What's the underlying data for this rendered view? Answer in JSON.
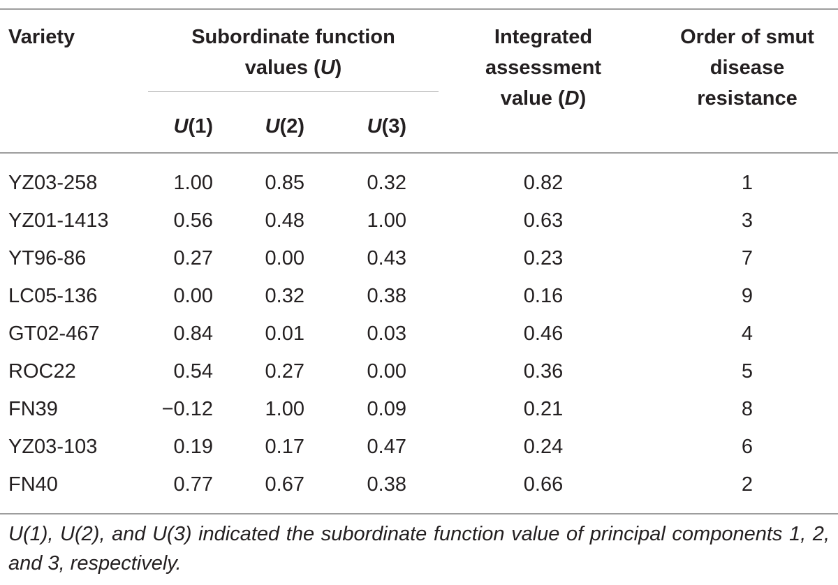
{
  "table": {
    "header": {
      "variety": "Variety",
      "subordinate_line1": "Subordinate function",
      "subordinate_line2_prefix": "values (",
      "subordinate_symbol": "U",
      "subordinate_line2_suffix": ")",
      "integrated_line1": "Integrated",
      "integrated_line2": "assessment",
      "integrated_line3_prefix": "value (",
      "integrated_symbol": "D",
      "integrated_line3_suffix": ")",
      "order_line1": "Order of smut",
      "order_line2": "disease",
      "order_line3": "resistance",
      "u_symbol": "U",
      "u1_index": "(1)",
      "u2_index": "(2)",
      "u3_index": "(3)"
    },
    "rows": [
      {
        "variety": "YZ03-258",
        "u1": "1.00",
        "u2": "0.85",
        "u3": "0.32",
        "d": "0.82",
        "order": "1"
      },
      {
        "variety": "YZ01-1413",
        "u1": "0.56",
        "u2": "0.48",
        "u3": "1.00",
        "d": "0.63",
        "order": "3"
      },
      {
        "variety": "YT96-86",
        "u1": "0.27",
        "u2": "0.00",
        "u3": "0.43",
        "d": "0.23",
        "order": "7"
      },
      {
        "variety": "LC05-136",
        "u1": "0.00",
        "u2": "0.32",
        "u3": "0.38",
        "d": "0.16",
        "order": "9"
      },
      {
        "variety": "GT02-467",
        "u1": "0.84",
        "u2": "0.01",
        "u3": "0.03",
        "d": "0.46",
        "order": "4"
      },
      {
        "variety": "ROC22",
        "u1": "0.54",
        "u2": "0.27",
        "u3": "0.00",
        "d": "0.36",
        "order": "5"
      },
      {
        "variety": "FN39",
        "u1": "−0.12",
        "u2": "1.00",
        "u3": "0.09",
        "d": "0.21",
        "order": "8"
      },
      {
        "variety": "YZ03-103",
        "u1": "0.19",
        "u2": "0.17",
        "u3": "0.47",
        "d": "0.24",
        "order": "6"
      },
      {
        "variety": "FN40",
        "u1": "0.77",
        "u2": "0.67",
        "u3": "0.38",
        "d": "0.66",
        "order": "2"
      }
    ],
    "footnote": "U(1), U(2), and U(3) indicated the subordinate function value of principal components 1, 2, and 3, respectively."
  }
}
